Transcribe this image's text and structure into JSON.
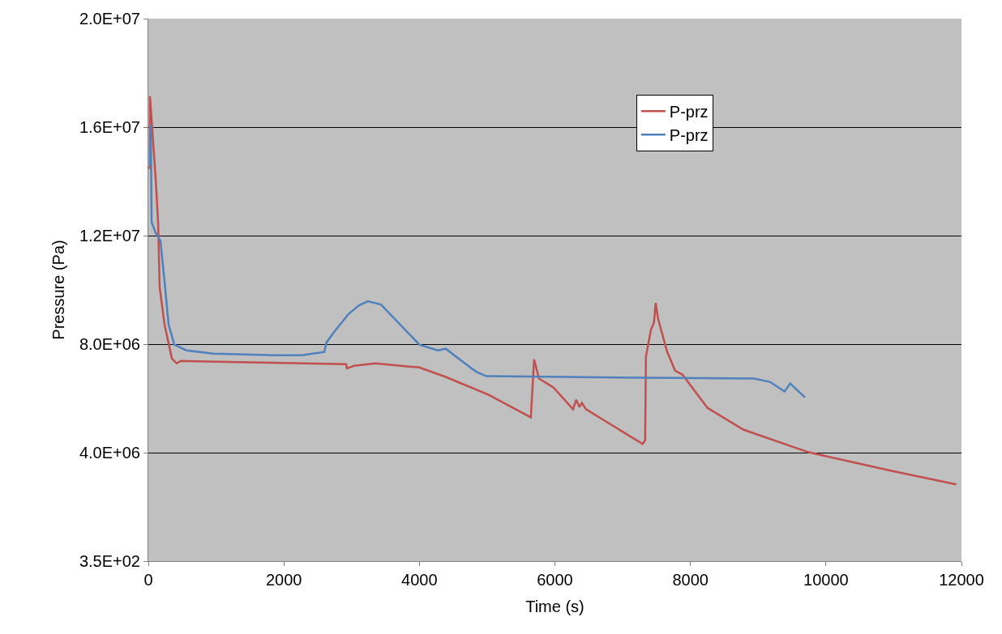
{
  "chart_data": {
    "type": "line",
    "xlabel": "Time (s)",
    "ylabel": "Pressure (Pa)",
    "xlim": [
      0,
      12000
    ],
    "xticks": [
      0,
      2000,
      4000,
      6000,
      8000,
      10000,
      12000
    ],
    "ylim": [
      350,
      20000000
    ],
    "yticks": [
      {
        "value": 350,
        "label": "3.5E+02"
      },
      {
        "value": 4000000,
        "label": "4.0E+06"
      },
      {
        "value": 8000000,
        "label": "8.0E+06"
      },
      {
        "value": 12000000,
        "label": "1.2E+07"
      },
      {
        "value": 16000000,
        "label": "1.6E+07"
      },
      {
        "value": 20000000,
        "label": "2.0E+07"
      }
    ],
    "grid": "y",
    "legend": "top right",
    "marker": "none",
    "line_style": "solid",
    "series": [
      {
        "name": "P-prz",
        "color": "#c0504d",
        "x": [
          0,
          24,
          24,
          108,
          144,
          167,
          239,
          347,
          419,
          478,
          1500,
          2918,
          2930,
          3038,
          3349,
          4000,
          4389,
          5023,
          5645,
          5693,
          5765,
          5884,
          5980,
          6267,
          6315,
          6363,
          6399,
          6458,
          7296,
          7332,
          7343,
          7415,
          7463,
          7487,
          7523,
          7654,
          7774,
          7881,
          8252,
          8779,
          9735,
          10967,
          11924
        ],
        "values": [
          14500000,
          14500000,
          17140000,
          14100000,
          12500000,
          10100000,
          8720000,
          7470000,
          7290000,
          7380000,
          7330000,
          7260000,
          7110000,
          7200000,
          7290000,
          7140000,
          6790000,
          6130000,
          5300000,
          7440000,
          6730000,
          6550000,
          6400000,
          5600000,
          5950000,
          5680000,
          5830000,
          5600000,
          4320000,
          4460000,
          7530000,
          8510000,
          8810000,
          9520000,
          8930000,
          7740000,
          7020000,
          6880000,
          5650000,
          4850000,
          4020000,
          3330000,
          2830000
        ]
      },
      {
        "name": "P-prz",
        "color": "#4f81bd",
        "x": [
          24,
          36,
          48,
          108,
          179,
          227,
          239,
          299,
          383,
          562,
          957,
          1878,
          2260,
          2595,
          2631,
          2751,
          2954,
          3110,
          3241,
          3433,
          4000,
          4270,
          4389,
          4593,
          4832,
          4987,
          6183,
          7379,
          8934,
          9173,
          9389,
          9472,
          9688
        ],
        "values": [
          14600000,
          16100000,
          12500000,
          12100000,
          11800000,
          10600000,
          10300000,
          8720000,
          7980000,
          7770000,
          7650000,
          7590000,
          7590000,
          7710000,
          8070000,
          8480000,
          9110000,
          9430000,
          9580000,
          9460000,
          7980000,
          7770000,
          7830000,
          7440000,
          6990000,
          6820000,
          6790000,
          6760000,
          6730000,
          6610000,
          6250000,
          6550000,
          6040000
        ]
      }
    ]
  }
}
